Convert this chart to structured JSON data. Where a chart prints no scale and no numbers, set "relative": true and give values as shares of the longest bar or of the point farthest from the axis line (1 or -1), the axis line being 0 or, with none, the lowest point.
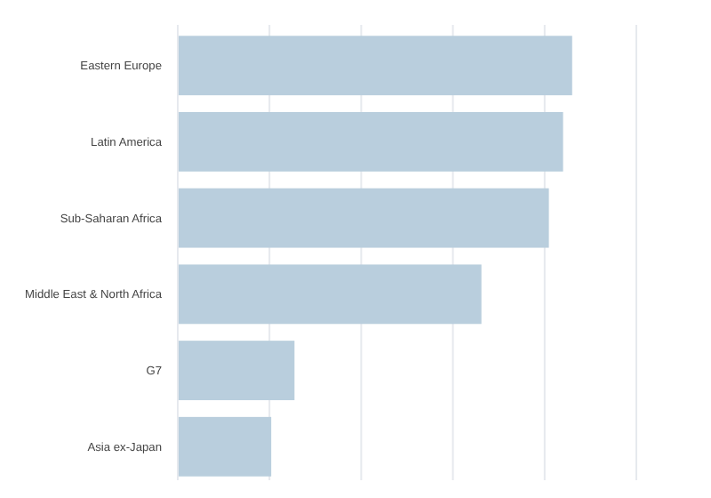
{
  "chart_data": {
    "type": "bar",
    "orientation": "horizontal",
    "relative": true,
    "grid": "x",
    "color": "#b9cedd",
    "categories": [
      "Eastern Europe",
      "Latin America",
      "Sub-Saharan Africa",
      "Middle East & North Africa",
      "G7",
      "Asia ex-Japan"
    ],
    "values": [
      1,
      0.977,
      0.941,
      0.77,
      0.296,
      0.237
    ]
  }
}
